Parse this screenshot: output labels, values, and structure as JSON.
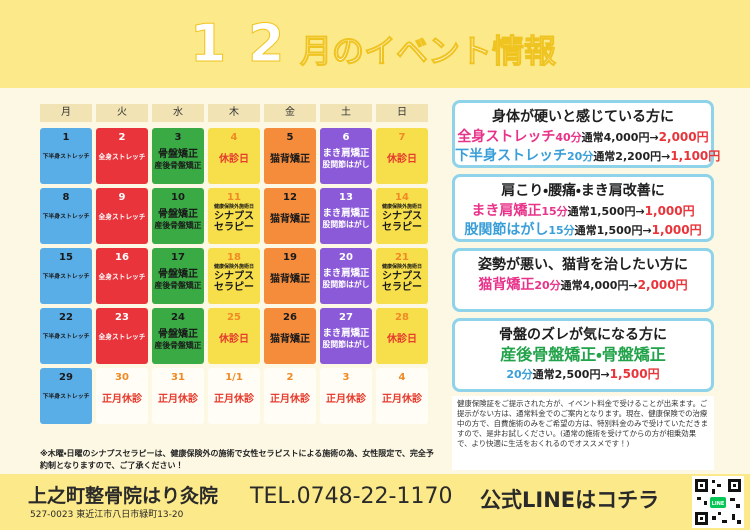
{
  "header": {
    "month": "12",
    "title": "月のイベント情報"
  },
  "calendar": {
    "weekdays": [
      "月",
      "火",
      "水",
      "木",
      "金",
      "土",
      "日"
    ],
    "weeks": [
      [
        {
          "date": "1",
          "labels": [
            "下半身ストレッチ"
          ],
          "color": "#5aaee8",
          "text_color": "#1a1a1a"
        },
        {
          "date": "2",
          "labels": [
            "全身ストレッチ"
          ],
          "color": "#e8343a",
          "text_color": "#ffffff"
        },
        {
          "date": "3",
          "labels": [
            "骨盤矯正",
            "産後骨盤矯正"
          ],
          "color": "#3aaa45",
          "text_color": "#1a1a1a"
        },
        {
          "date": "4",
          "labels": [
            "休診日"
          ],
          "color": "#f7df4b",
          "text_color": "#e63b2e"
        },
        {
          "date": "5",
          "labels": [
            "猫背矯正"
          ],
          "color": "#f58c3c",
          "text_color": "#1a1a1a"
        },
        {
          "date": "6",
          "labels": [
            "まき肩矯正",
            "股関節はがし"
          ],
          "color": "#8a5ad8",
          "text_color": "#ffffff"
        },
        {
          "date": "7",
          "labels": [
            "休診日"
          ],
          "color": "#f7df4b",
          "text_color": "#e63b2e"
        }
      ],
      [
        {
          "date": "8",
          "labels": [
            "下半身ストレッチ"
          ],
          "color": "#5aaee8",
          "text_color": "#1a1a1a"
        },
        {
          "date": "9",
          "labels": [
            "全身ストレッチ"
          ],
          "color": "#e8343a",
          "text_color": "#ffffff"
        },
        {
          "date": "10",
          "labels": [
            "骨盤矯正",
            "産後骨盤矯正"
          ],
          "color": "#3aaa45",
          "text_color": "#1a1a1a"
        },
        {
          "date": "11",
          "labels": [
            "健康保険外施術日",
            "シナプス",
            "セラピー"
          ],
          "color": "#f7df4b",
          "text_color": "#1a1a1a"
        },
        {
          "date": "12",
          "labels": [
            "猫背矯正"
          ],
          "color": "#f58c3c",
          "text_color": "#1a1a1a"
        },
        {
          "date": "13",
          "labels": [
            "まき肩矯正",
            "股関節はがし"
          ],
          "color": "#8a5ad8",
          "text_color": "#ffffff"
        },
        {
          "date": "14",
          "labels": [
            "健康保険外施術日",
            "シナプス",
            "セラピー"
          ],
          "color": "#f7df4b",
          "text_color": "#1a1a1a"
        }
      ],
      [
        {
          "date": "15",
          "labels": [
            "下半身ストレッチ"
          ],
          "color": "#5aaee8",
          "text_color": "#1a1a1a"
        },
        {
          "date": "16",
          "labels": [
            "全身ストレッチ"
          ],
          "color": "#e8343a",
          "text_color": "#ffffff"
        },
        {
          "date": "17",
          "labels": [
            "骨盤矯正",
            "産後骨盤矯正"
          ],
          "color": "#3aaa45",
          "text_color": "#1a1a1a"
        },
        {
          "date": "18",
          "labels": [
            "健康保険外施術日",
            "シナプス",
            "セラピー"
          ],
          "color": "#f7df4b",
          "text_color": "#1a1a1a"
        },
        {
          "date": "19",
          "labels": [
            "猫背矯正"
          ],
          "color": "#f58c3c",
          "text_color": "#1a1a1a"
        },
        {
          "date": "20",
          "labels": [
            "まき肩矯正",
            "股関節はがし"
          ],
          "color": "#8a5ad8",
          "text_color": "#ffffff"
        },
        {
          "date": "21",
          "labels": [
            "健康保険外施術日",
            "シナプス",
            "セラピー"
          ],
          "color": "#f7df4b",
          "text_color": "#1a1a1a"
        }
      ],
      [
        {
          "date": "22",
          "labels": [
            "下半身ストレッチ"
          ],
          "color": "#5aaee8",
          "text_color": "#1a1a1a"
        },
        {
          "date": "23",
          "labels": [
            "全身ストレッチ"
          ],
          "color": "#e8343a",
          "text_color": "#ffffff"
        },
        {
          "date": "24",
          "labels": [
            "骨盤矯正",
            "産後骨盤矯正"
          ],
          "color": "#3aaa45",
          "text_color": "#1a1a1a"
        },
        {
          "date": "25",
          "labels": [
            "休診日"
          ],
          "color": "#f7df4b",
          "text_color": "#e63b2e"
        },
        {
          "date": "26",
          "labels": [
            "猫背矯正"
          ],
          "color": "#f58c3c",
          "text_color": "#1a1a1a"
        },
        {
          "date": "27",
          "labels": [
            "まき肩矯正",
            "股関節はがし"
          ],
          "color": "#8a5ad8",
          "text_color": "#ffffff"
        },
        {
          "date": "28",
          "labels": [
            "休診日"
          ],
          "color": "#f7df4b",
          "text_color": "#e63b2e"
        }
      ],
      [
        {
          "date": "29",
          "labels": [
            "下半身ストレッチ"
          ],
          "color": "#5aaee8",
          "text_color": "#1a1a1a"
        },
        {
          "date": "30",
          "labels": [
            "正月休診"
          ],
          "color": "#fffdf5",
          "text_color": "#e63b2e"
        },
        {
          "date": "31",
          "labels": [
            "正月休診"
          ],
          "color": "#fffdf5",
          "text_color": "#e63b2e"
        },
        {
          "date": "1/1",
          "labels": [
            "正月休診"
          ],
          "color": "#fffdf5",
          "text_color": "#e63b2e"
        },
        {
          "date": "2",
          "labels": [
            "正月休診"
          ],
          "color": "#fffdf5",
          "text_color": "#e63b2e"
        },
        {
          "date": "3",
          "labels": [
            "正月休診"
          ],
          "color": "#fffdf5",
          "text_color": "#e63b2e"
        },
        {
          "date": "4",
          "labels": [
            "正月休診"
          ],
          "color": "#fffdf5",
          "text_color": "#e63b2e"
        }
      ]
    ]
  },
  "calendar_note": "※木曜・日曜のシナプスセラピーは、健康保険外の施術で女性セラピストによる施術の為、女性限定で、完全予約制となりますので、ご了承ください！",
  "offers": [
    {
      "heading": "身体が硬いと感じている方に",
      "items": [
        {
          "name": "全身ストレッチ",
          "duration": "40分",
          "regular": "通常4,000円→",
          "price": "2,000円",
          "color": "#e8338a"
        },
        {
          "name": "下半身ストレッチ",
          "duration": "20分",
          "regular": "通常2,200円→",
          "price": "1,100円",
          "color": "#3a9fd8"
        }
      ]
    },
    {
      "heading": "肩こり・腰痛・まき肩改善に",
      "items": [
        {
          "name": "まき肩矯正",
          "duration": "15分",
          "regular": "通常1,500円→",
          "price": "1,000円",
          "color": "#e8338a"
        },
        {
          "name": "股関節はがし",
          "duration": "15分",
          "regular": "通常1,500円→",
          "price": "1,000円",
          "color": "#3a9fd8"
        }
      ]
    },
    {
      "heading": "姿勢が悪い、猫背を治したい方に",
      "items": [
        {
          "name": "猫背矯正",
          "duration": "20分",
          "regular": "通常4,000円→",
          "price": "2,000円",
          "color": "#e8338a"
        }
      ]
    },
    {
      "heading": "骨盤のズレが気になる方に",
      "items": [
        {
          "name": "産後骨盤矯正・骨盤矯正",
          "color": "#22a34a"
        },
        {
          "duration": "20分",
          "regular": "通常2,500円→",
          "price": "1,500円",
          "color": "#3a9fd8"
        }
      ]
    }
  ],
  "note": "健康保険証をご提示された方が、イベント料金で受けることが出来ます。ご提示がない方は、通常料金でのご案内となります。現在、健康保険での治療中の方で、自費施術のみをご希望の方は、特別料金のみで受けていただきますので、是非お試しください。(通常の施術を受けてからの方が相乗効果で、より快適に生活をおくれるのでオススメです！)",
  "footer": {
    "clinic": "上之町整骨院はり灸院",
    "address": "527-0023 東近江市八日市緑町13-20",
    "tel": "TEL.0748-22-1170",
    "line": "公式LINEはコチラ",
    "qr_label": "LINE"
  }
}
